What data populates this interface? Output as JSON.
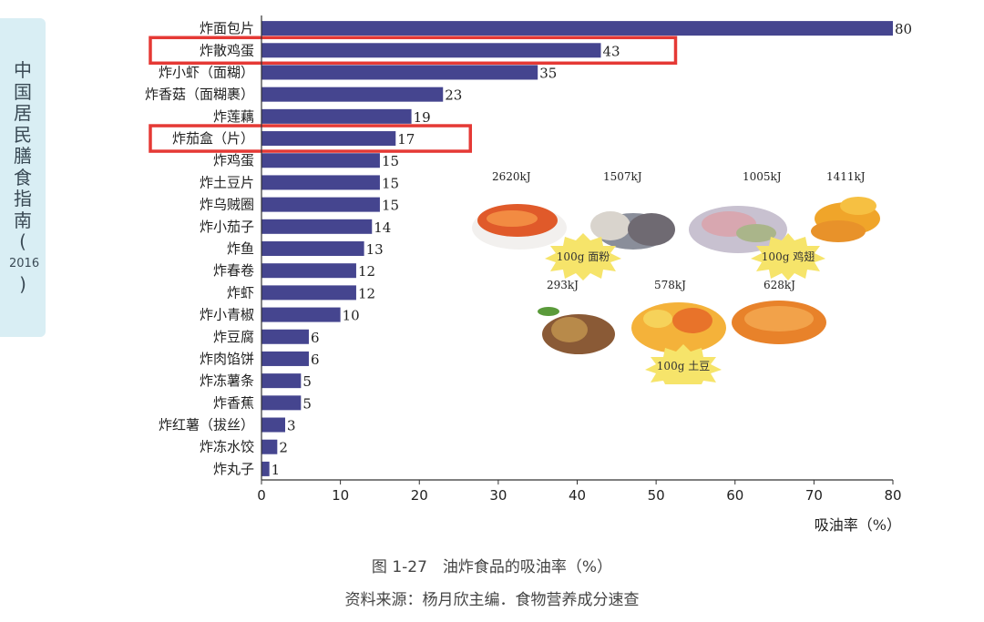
{
  "side_tab": {
    "chars": [
      "中",
      "国",
      "居",
      "民",
      "膳",
      "食",
      "指",
      "南",
      "(",
      "2016",
      ")"
    ]
  },
  "chart_data": {
    "type": "bar",
    "orientation": "horizontal",
    "categories": [
      "炸面包片",
      "炸散鸡蛋",
      "炸小虾（面糊）",
      "炸香菇（面糊裹）",
      "炸莲藕",
      "炸茄盒（片）",
      "炸鸡蛋",
      "炸土豆片",
      "炸乌贼圈",
      "炸小茄子",
      "炸鱼",
      "炸春卷",
      "炸虾",
      "炸小青椒",
      "炸豆腐",
      "炸肉馅饼",
      "炸冻薯条",
      "炸香蕉",
      "炸红薯（拔丝）",
      "炸冻水饺",
      "炸丸子"
    ],
    "values": [
      80,
      43,
      35,
      23,
      19,
      17,
      15,
      15,
      15,
      14,
      13,
      12,
      12,
      10,
      6,
      6,
      5,
      5,
      3,
      2,
      1
    ],
    "value_labels": [
      "80",
      "43",
      "35",
      "23",
      "19",
      "17",
      "15",
      "15",
      "15",
      "14",
      "13",
      "12",
      "12",
      "10",
      "6",
      "6",
      "5",
      "5",
      "3",
      "2",
      "1"
    ],
    "xlim": [
      0,
      80
    ],
    "xticks": [
      "0",
      "10",
      "20",
      "30",
      "40",
      "50",
      "60",
      "70",
      "80"
    ],
    "xlabel": "吸油率（%）",
    "highlighted": [
      "炸散鸡蛋",
      "炸茄盒（片）"
    ],
    "bar_color": "#45458f",
    "highlight_color": "#e53935",
    "grid": false
  },
  "food_panel": {
    "top_kj": [
      "2620kJ",
      "1507kJ",
      "1005kJ",
      "1411kJ"
    ],
    "bottom_kj": [
      "293kJ",
      "578kJ",
      "628kJ"
    ],
    "bursts": [
      "100g 面粉",
      "100g 鸡翅",
      "100g 土豆"
    ]
  },
  "caption": "图 1-27　油炸食品的吸油率（%）",
  "source": "资料来源：杨月欣主编．食物营养成分速查"
}
